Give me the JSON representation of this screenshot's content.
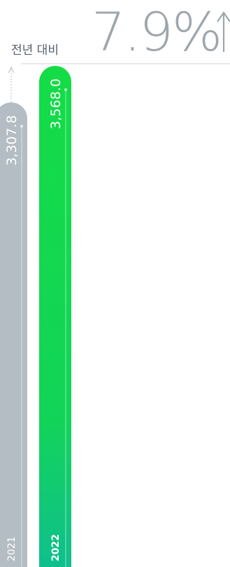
{
  "header": {
    "compare_label": "전년 대비",
    "growth_value": "7.9%",
    "growth_arrow": "↑"
  },
  "chart_data": {
    "type": "bar",
    "categories": [
      "2021",
      "2022"
    ],
    "values": [
      3307.8,
      3568.0
    ],
    "value_labels": [
      "3,307.8",
      "3,568.0"
    ],
    "title": "",
    "xlabel": "",
    "ylabel": "",
    "ylim": [
      0,
      3568.0
    ],
    "grid": false,
    "colors": {
      "bar_2021": "#b3bdc3",
      "bar_2022_top": "#14dc46",
      "bar_2022_bottom": "#10bf8e",
      "growth_text": "#9ea6ad",
      "label_text": "#55606a",
      "guide_line": "#b8c0c6"
    }
  }
}
